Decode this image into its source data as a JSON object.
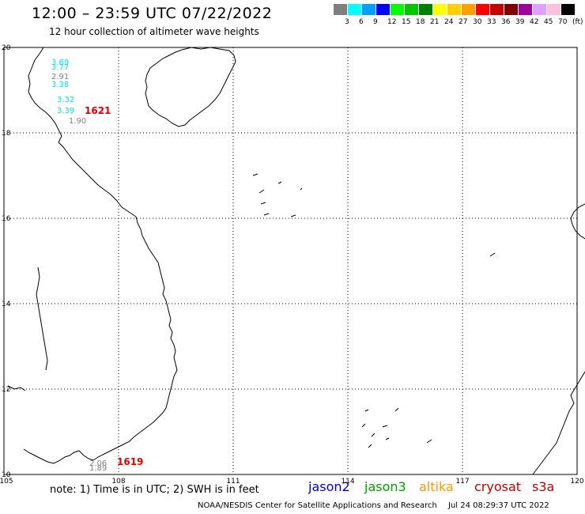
{
  "header": {
    "title": "12:00 – 23:59 UTC 07/22/2022",
    "subtitle": "12 hour collection of altimeter wave heights"
  },
  "scale": {
    "unit": "(ft)",
    "colors": [
      "#7f7f7f",
      "#00ffff",
      "#00a0ff",
      "#0000ff",
      "#00ff00",
      "#00c800",
      "#008000",
      "#ffff00",
      "#ffd000",
      "#ffa000",
      "#ff0000",
      "#c80000",
      "#800000",
      "#a000a0",
      "#e0a0ff",
      "#ffc0e0",
      "#000000"
    ],
    "labels": [
      "3",
      "6",
      "9",
      "12",
      "15",
      "18",
      "21",
      "24",
      "27",
      "30",
      "33",
      "36",
      "39",
      "42",
      "45",
      "70"
    ]
  },
  "map": {
    "lon_labels": [
      "105",
      "108",
      "111",
      "114",
      "117",
      "120"
    ],
    "lat_labels": [
      "20",
      "18",
      "16",
      "14",
      "12",
      "10"
    ],
    "grid_color": "#000000",
    "coast_color": "#000000"
  },
  "observations": [
    {
      "value": "3.69",
      "color": "#00e8e8"
    },
    {
      "value": "3.77",
      "color": "#00e8e8"
    },
    {
      "value": "2.91",
      "color": "#808080"
    },
    {
      "value": "3.38",
      "color": "#00e8e8"
    },
    {
      "value": "3.32",
      "color": "#00e8e8"
    },
    {
      "value": "3.39",
      "color": "#00e8e8"
    },
    {
      "value": "1.90",
      "color": "#808080"
    },
    {
      "value": "2.06",
      "color": "#808080"
    },
    {
      "value": "1.89",
      "color": "#808080"
    }
  ],
  "track_labels": [
    {
      "value": "1621",
      "color": "#e00000"
    },
    {
      "value": "1619",
      "color": "#e00000"
    }
  ],
  "footer": {
    "note": "note:  1) Time is in UTC;  2) SWH is in feet",
    "satellites": [
      {
        "name": "jason2",
        "color": "#0000d0"
      },
      {
        "name": "jason3",
        "color": "#00a000"
      },
      {
        "name": "altika",
        "color": "#ff9900"
      },
      {
        "name": "cryosat",
        "color": "#c00000"
      },
      {
        "name": "s3a",
        "color": "#c00000"
      }
    ],
    "credit": "NOAA/NESDIS Center for Satellite Applications and Research",
    "timestamp": "Jul 24 08:29:37 UTC 2022"
  }
}
